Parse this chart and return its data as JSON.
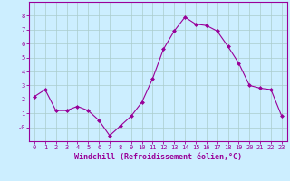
{
  "x": [
    0,
    1,
    2,
    3,
    4,
    5,
    6,
    7,
    8,
    9,
    10,
    11,
    12,
    13,
    14,
    15,
    16,
    17,
    18,
    19,
    20,
    21,
    22,
    23
  ],
  "y": [
    2.2,
    2.7,
    1.2,
    1.2,
    1.5,
    1.2,
    0.5,
    -0.6,
    0.1,
    0.8,
    1.8,
    3.5,
    5.6,
    6.9,
    7.9,
    7.4,
    7.3,
    6.9,
    5.8,
    4.6,
    3.0,
    2.8,
    2.7,
    0.8
  ],
  "line_color": "#990099",
  "marker": "D",
  "marker_size": 2.0,
  "bg_color": "#cceeff",
  "grid_color": "#aacccc",
  "xlabel": "Windchill (Refroidissement éolien,°C)",
  "xlabel_color": "#990099",
  "ylim": [
    -1.0,
    9.0
  ],
  "xlim": [
    -0.5,
    23.5
  ],
  "yticks": [
    0,
    1,
    2,
    3,
    4,
    5,
    6,
    7,
    8
  ],
  "ytick_labels": [
    "-0",
    "1",
    "2",
    "3",
    "4",
    "5",
    "6",
    "7",
    "8"
  ],
  "xticks": [
    0,
    1,
    2,
    3,
    4,
    5,
    6,
    7,
    8,
    9,
    10,
    11,
    12,
    13,
    14,
    15,
    16,
    17,
    18,
    19,
    20,
    21,
    22,
    23
  ],
  "tick_color": "#990099",
  "spine_color": "#990099",
  "tick_fontsize": 5.0,
  "xlabel_fontsize": 6.0
}
